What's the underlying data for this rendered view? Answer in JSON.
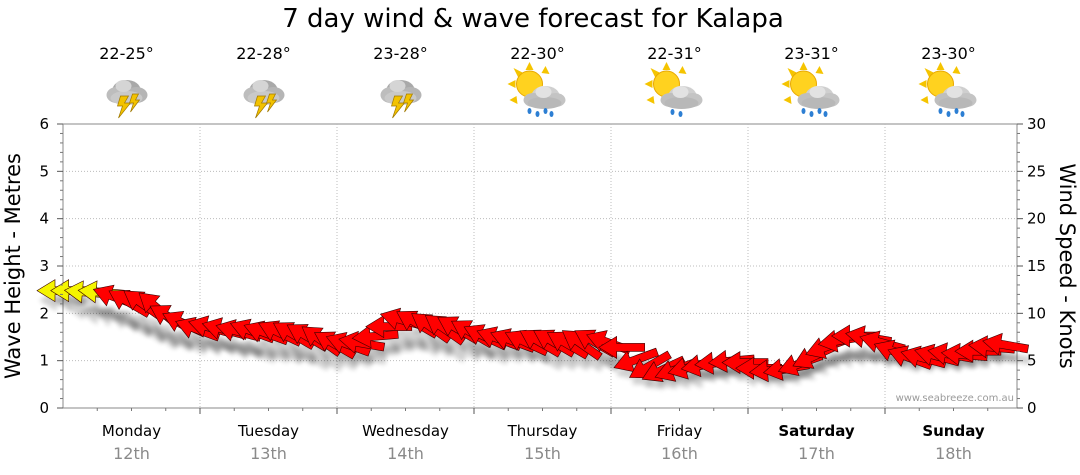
{
  "chart_data": {
    "type": "line",
    "title": "7 day wind & wave forecast for Kalapa",
    "ylabel_left": "Wave Height - Metres",
    "ylabel_right": "Wind Speed - Knots",
    "ylim_left": [
      0,
      6
    ],
    "ylim_right": [
      0,
      30
    ],
    "yticks_left": [
      "0",
      "1",
      "2",
      "3",
      "4",
      "5",
      "6"
    ],
    "yticks_right": [
      "0",
      "5",
      "10",
      "15",
      "20",
      "25",
      "30"
    ],
    "credit": "www.seabreeze.com.au",
    "days": [
      {
        "day": "Monday",
        "date": "12th",
        "temp": "22-25°",
        "icon": "thunderstorm-icon",
        "bold": false
      },
      {
        "day": "Tuesday",
        "date": "13th",
        "temp": "22-28°",
        "icon": "thunderstorm-icon",
        "bold": false
      },
      {
        "day": "Wednesday",
        "date": "14th",
        "temp": "23-28°",
        "icon": "thunderstorm-icon",
        "bold": false
      },
      {
        "day": "Thursday",
        "date": "15th",
        "temp": "22-30°",
        "icon": "sun-cloud-rain-icon",
        "bold": false
      },
      {
        "day": "Friday",
        "date": "16th",
        "temp": "22-31°",
        "icon": "sun-cloud-drizzle-icon",
        "bold": false
      },
      {
        "day": "Saturday",
        "date": "17th",
        "temp": "23-31°",
        "icon": "sun-cloud-rain-icon",
        "bold": true
      },
      {
        "day": "Sunday",
        "date": "18th",
        "temp": "23-30°",
        "icon": "sun-cloud-rain-icon",
        "bold": true
      }
    ],
    "series": [
      {
        "x": [
          0.0,
          0.1,
          0.2,
          0.3,
          0.4,
          0.5,
          0.6,
          0.7,
          0.8,
          0.9,
          1.0,
          1.1,
          1.2,
          1.3,
          1.4,
          1.5,
          1.6,
          1.7,
          1.8,
          1.9,
          2.0,
          2.1,
          2.2,
          2.3,
          2.4,
          2.5,
          2.6,
          2.7,
          2.8,
          2.9,
          3.0,
          3.1,
          3.2,
          3.3,
          3.4,
          3.5,
          3.6,
          3.7,
          3.8,
          3.9,
          4.0,
          4.1,
          4.2,
          4.3,
          4.4,
          4.5,
          4.6,
          4.7,
          4.8,
          4.9,
          5.0,
          5.1,
          5.2,
          5.3,
          5.4,
          5.5,
          5.6,
          5.7,
          5.8,
          5.9,
          6.0,
          6.1,
          6.2,
          6.3,
          6.4,
          6.5,
          6.6,
          6.7,
          6.8,
          6.9
        ],
        "wind_knots": [
          12.4,
          12.4,
          12.2,
          12.2,
          11.6,
          11.0,
          10.8,
          10.4,
          9.4,
          8.8,
          8.2,
          8.4,
          8.2,
          8.0,
          8.0,
          7.8,
          7.8,
          7.6,
          7.4,
          7.0,
          6.6,
          6.6,
          6.8,
          7.6,
          8.6,
          9.2,
          8.8,
          8.4,
          8.2,
          8.2,
          7.8,
          7.4,
          7.2,
          7.0,
          6.8,
          6.8,
          6.8,
          6.6,
          6.6,
          6.8,
          6.8,
          6.4,
          5.2,
          4.6,
          4.2,
          4.2,
          4.4,
          4.6,
          4.8,
          5.0,
          4.8,
          4.2,
          4.0,
          4.2,
          4.8,
          5.6,
          6.6,
          7.2,
          7.6,
          7.4,
          6.8,
          5.8,
          5.2,
          5.2,
          5.4,
          5.6,
          5.6,
          6.0,
          6.4,
          6.6
        ],
        "wave_m": [
          2.4,
          2.4,
          2.2,
          2.1,
          2.0,
          1.9,
          1.8,
          1.7,
          1.6,
          1.5,
          1.5,
          1.5,
          1.4,
          1.4,
          1.3,
          1.3,
          1.3,
          1.3,
          1.2,
          1.2,
          1.2,
          1.2,
          1.2,
          1.3,
          1.4,
          1.5,
          1.5,
          1.5,
          1.4,
          1.4,
          1.4,
          1.3,
          1.3,
          1.3,
          1.3,
          1.2,
          1.2,
          1.2,
          1.2,
          1.2,
          1.2,
          1.1,
          1.0,
          0.9,
          0.8,
          0.8,
          0.8,
          0.8,
          0.9,
          0.9,
          0.9,
          0.8,
          0.8,
          0.8,
          0.9,
          1.0,
          1.1,
          1.2,
          1.2,
          1.2,
          1.2,
          1.1,
          1.1,
          1.1,
          1.1,
          1.1,
          1.1,
          1.2,
          1.2,
          1.2
        ],
        "dir_deg": [
          270,
          270,
          275,
          275,
          290,
          300,
          305,
          310,
          300,
          295,
          290,
          285,
          285,
          285,
          290,
          290,
          295,
          300,
          300,
          305,
          300,
          290,
          280,
          265,
          270,
          285,
          300,
          305,
          305,
          300,
          300,
          295,
          290,
          290,
          295,
          300,
          300,
          300,
          305,
          300,
          290,
          270,
          250,
          240,
          245,
          250,
          255,
          260,
          265,
          265,
          270,
          270,
          265,
          260,
          250,
          245,
          250,
          260,
          270,
          280,
          285,
          290,
          290,
          285,
          285,
          280,
          275,
          270,
          275,
          280
        ]
      }
    ]
  }
}
